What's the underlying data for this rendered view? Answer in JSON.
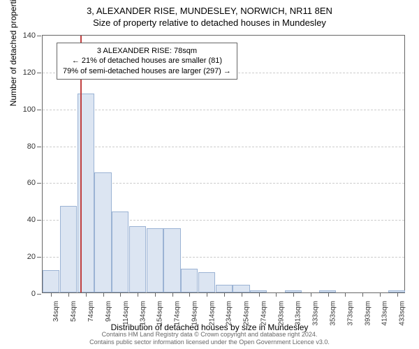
{
  "chart": {
    "type": "histogram",
    "title_main": "3, ALEXANDER RISE, MUNDESLEY, NORWICH, NR11 8EN",
    "title_sub": "Size of property relative to detached houses in Mundesley",
    "y_axis_title": "Number of detached properties",
    "x_axis_title": "Distribution of detached houses by size in Mundesley",
    "ylim": [
      0,
      140
    ],
    "ytick_step": 20,
    "y_ticks": [
      0,
      20,
      40,
      60,
      80,
      100,
      120,
      140
    ],
    "x_categories": [
      "34sqm",
      "54sqm",
      "74sqm",
      "94sqm",
      "114sqm",
      "134sqm",
      "154sqm",
      "174sqm",
      "194sqm",
      "214sqm",
      "234sqm",
      "254sqm",
      "274sqm",
      "293sqm",
      "313sqm",
      "333sqm",
      "353sqm",
      "373sqm",
      "393sqm",
      "413sqm",
      "433sqm"
    ],
    "values": [
      12,
      47,
      108,
      65,
      44,
      36,
      35,
      35,
      13,
      11,
      4,
      4,
      1,
      0,
      1,
      0,
      1,
      0,
      0,
      0,
      1
    ],
    "bar_fill": "#dce5f2",
    "bar_stroke": "#9bb3d4",
    "grid_color": "#cccccc",
    "axis_color": "#666666",
    "background_color": "#ffffff",
    "reference_line": {
      "position_index": 2.2,
      "color": "#c04040"
    },
    "info_box": {
      "line1": "3 ALEXANDER RISE: 78sqm",
      "line2": "← 21% of detached houses are smaller (81)",
      "line3": "79% of semi-detached houses are larger (297) →"
    },
    "footer_line1": "Contains HM Land Registry data © Crown copyright and database right 2024.",
    "footer_line2": "Contains public sector information licensed under the Open Government Licence v3.0.",
    "title_fontsize": 13,
    "axis_title_fontsize": 12,
    "tick_fontsize": 11,
    "info_fontsize": 11,
    "footer_fontsize": 9
  }
}
